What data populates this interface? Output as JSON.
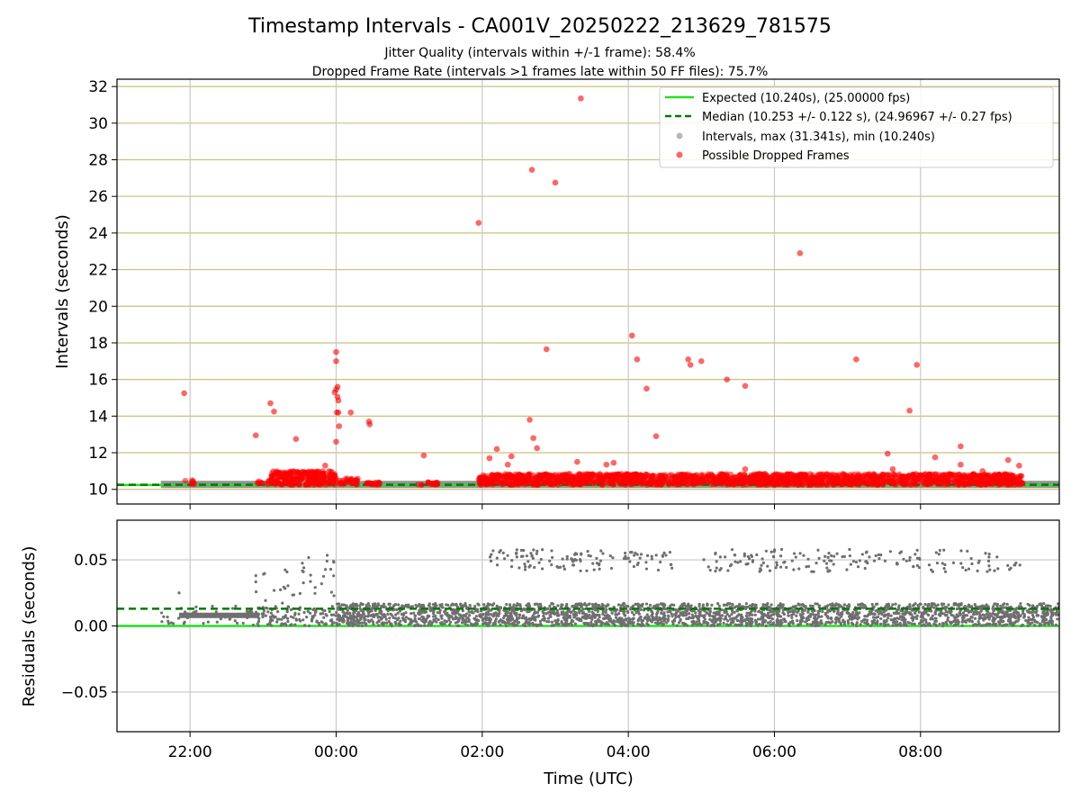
{
  "title": "Timestamp Intervals - CA001V_20250222_213629_781575",
  "subtitle_1": "Jitter Quality (intervals within +/-1 frame): 58.4%",
  "subtitle_2": "Dropped Frame Rate (intervals >1 frames late within 50 FF files): 75.7%",
  "colors": {
    "expected": "#22e022",
    "median": "#007a00",
    "intervals": "#808080",
    "dropped": "#ff0000",
    "grid_top": "#cdbf7a",
    "grid_bottom": "#c8c8c8",
    "residuals": "#6f6f6f"
  },
  "chart_data": [
    {
      "type": "scatter",
      "ylabel": "Intervals (seconds)",
      "xlabel": "",
      "xlim_hours": [
        21.0,
        33.9
      ],
      "ylim": [
        9.2,
        32.4
      ],
      "yticks": [
        10,
        12,
        14,
        16,
        18,
        20,
        22,
        24,
        26,
        28,
        30,
        32
      ],
      "grid": "horizontal",
      "legend_position": "top-right",
      "legend": [
        "Expected (10.240s), (25.00000 fps)",
        "Median (10.253 +/- 0.122 s), (24.96967 +/- 0.27 fps)",
        "Intervals, max (31.341s), min (10.240s)",
        "Possible Dropped Frames"
      ],
      "expected_interval": 10.24,
      "median_interval": 10.253,
      "intervals_max": 31.341,
      "intervals_min": 10.24,
      "dropped_frames_outliers": [
        [
          21.92,
          15.25
        ],
        [
          22.9,
          12.95
        ],
        [
          23.1,
          14.7
        ],
        [
          23.15,
          14.25
        ],
        [
          23.45,
          12.75
        ],
        [
          23.85,
          11.3
        ],
        [
          23.98,
          15.3
        ],
        [
          24.0,
          15.45
        ],
        [
          24.02,
          15.6
        ],
        [
          24.0,
          17.5
        ],
        [
          24.0,
          17.0
        ],
        [
          24.02,
          15.05
        ],
        [
          24.03,
          14.85
        ],
        [
          24.01,
          14.2
        ],
        [
          24.03,
          14.2
        ],
        [
          24.04,
          13.45
        ],
        [
          24.0,
          12.6
        ],
        [
          24.2,
          14.2
        ],
        [
          24.45,
          13.7
        ],
        [
          24.46,
          13.55
        ],
        [
          25.2,
          11.85
        ],
        [
          25.95,
          24.55
        ],
        [
          26.1,
          11.7
        ],
        [
          26.2,
          12.2
        ],
        [
          26.35,
          11.35
        ],
        [
          26.4,
          11.8
        ],
        [
          26.65,
          13.8
        ],
        [
          26.7,
          12.8
        ],
        [
          26.75,
          12.25
        ],
        [
          26.68,
          27.45
        ],
        [
          26.88,
          17.65
        ],
        [
          27.0,
          26.75
        ],
        [
          27.3,
          11.5
        ],
        [
          27.35,
          31.35
        ],
        [
          27.7,
          11.35
        ],
        [
          27.8,
          11.45
        ],
        [
          28.05,
          18.4
        ],
        [
          28.12,
          17.1
        ],
        [
          28.25,
          15.5
        ],
        [
          28.38,
          12.9
        ],
        [
          28.82,
          17.1
        ],
        [
          28.85,
          16.8
        ],
        [
          29.0,
          17.0
        ],
        [
          29.35,
          16.0
        ],
        [
          29.6,
          15.65
        ],
        [
          29.6,
          11.1
        ],
        [
          30.35,
          22.9
        ],
        [
          31.12,
          17.1
        ],
        [
          31.55,
          11.95
        ],
        [
          31.62,
          11.1
        ],
        [
          31.85,
          14.3
        ],
        [
          31.95,
          16.8
        ],
        [
          32.2,
          11.75
        ],
        [
          32.55,
          12.35
        ],
        [
          32.55,
          11.35
        ],
        [
          32.85,
          11.0
        ],
        [
          33.2,
          11.6
        ],
        [
          33.35,
          11.3
        ]
      ]
    },
    {
      "type": "scatter",
      "ylabel": "Residuals (seconds)",
      "xlabel": "Time (UTC)",
      "xlim_hours": [
        21.0,
        33.9
      ],
      "ylim": [
        -0.08,
        0.08
      ],
      "yticks": [
        -0.05,
        0.0,
        0.05
      ],
      "ytick_labels": [
        "−0.05",
        "0.00",
        "0.05"
      ],
      "xticks_hours": [
        22,
        24,
        26,
        28,
        30,
        32
      ],
      "xtick_labels": [
        "22:00",
        "00:00",
        "02:00",
        "04:00",
        "06:00",
        "08:00"
      ],
      "grid": "both",
      "expected_residual": 0.0,
      "median_residual": 0.013
    }
  ]
}
